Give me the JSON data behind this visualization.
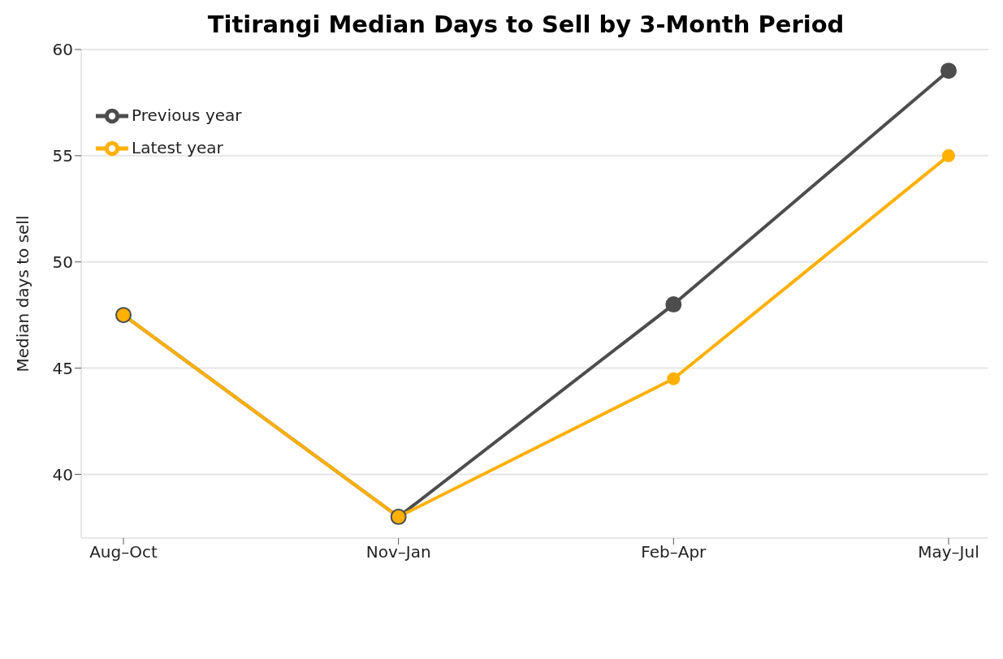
{
  "chart_data": {
    "type": "line",
    "title": "Titirangi Median Days to Sell by 3-Month Period",
    "ylabel": "Median days to sell",
    "categories": [
      "Aug–Oct",
      "Nov–Jan",
      "Feb–Apr",
      "May–Jul"
    ],
    "series": [
      {
        "name": "Previous year",
        "color": "#4d4d4d",
        "values": [
          47.5,
          38,
          48,
          59
        ]
      },
      {
        "name": "Latest year",
        "color": "#ffb000",
        "values": [
          47.5,
          38,
          44.5,
          55
        ]
      }
    ],
    "ylim": [
      37,
      60
    ],
    "yticks": [
      40,
      45,
      50,
      55,
      60
    ],
    "grid": "y",
    "legend": "top left",
    "marker": "circle",
    "line_style": "solid"
  }
}
